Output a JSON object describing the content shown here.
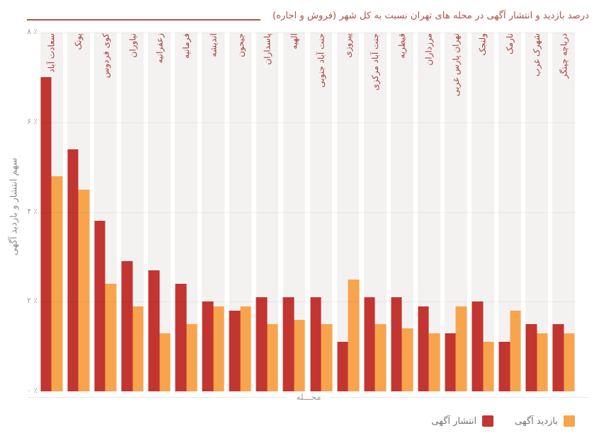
{
  "title": "درصد بازدید و انتشار آگهی در محله های تهران نسبت به کل شهر (فروش و اجاره)",
  "x_axis": {
    "label": "محـــله"
  },
  "y_axis": {
    "title": "سهم انتشار و بازدید آگهی",
    "ticks": [
      "۸ ٪",
      "۶ ٪",
      "۴ ٪",
      "۲ ٪",
      "۰ ٪"
    ]
  },
  "legend": [
    {
      "label": "بازدید آگهی",
      "color": "#f8a44d"
    },
    {
      "label": "انتشار آگهی",
      "color": "#c23531"
    }
  ],
  "colors": {
    "publish_bar": "#c23531",
    "view_bar": "#f8a44d",
    "category_label": "#a6413b",
    "title": "#b0544c",
    "band_background": "#f4f1f1",
    "axis_text": "#9b9b9b"
  },
  "chart_data": {
    "type": "bar",
    "title": "درصد بازدید و انتشار آگهی در محله های تهران نسبت به کل شهر (فروش و اجاره)",
    "xlabel": "محـــله",
    "ylabel": "سهم انتشار و بازدید آگهی",
    "ylim": [
      0,
      8
    ],
    "yticks_percent": [
      0,
      2,
      4,
      6,
      8
    ],
    "grid": true,
    "legend_position": "bottom-right",
    "categories": [
      "سعادت آباد",
      "پونک",
      "کوی فردوس",
      "نیاوران",
      "زعفرانیه",
      "فرمانیه",
      "اندیشه",
      "جیحون",
      "پاسداران",
      "الهیه",
      "جنت آباد جنوبی",
      "پیروزی",
      "جنت آباد مرکزی",
      "قیطریه",
      "مرزداران",
      "تهران پارس غربی",
      "ولنجک",
      "نارمک",
      "شهرک غرب",
      "دریاچه چیتگر"
    ],
    "series": [
      {
        "name": "انتشار آگهی",
        "color": "#c23531",
        "values": [
          7.0,
          5.4,
          3.8,
          2.9,
          2.7,
          2.4,
          2.0,
          1.8,
          2.1,
          2.1,
          2.1,
          1.1,
          2.1,
          2.1,
          1.9,
          1.3,
          2.0,
          1.1,
          1.5,
          1.5
        ]
      },
      {
        "name": "بازدید آگهی",
        "color": "#f8a44d",
        "values": [
          4.8,
          4.5,
          2.4,
          1.9,
          1.3,
          1.5,
          1.9,
          1.9,
          1.5,
          1.6,
          1.5,
          2.5,
          1.5,
          1.4,
          1.3,
          1.9,
          1.1,
          1.8,
          1.3,
          1.3
        ]
      }
    ]
  }
}
